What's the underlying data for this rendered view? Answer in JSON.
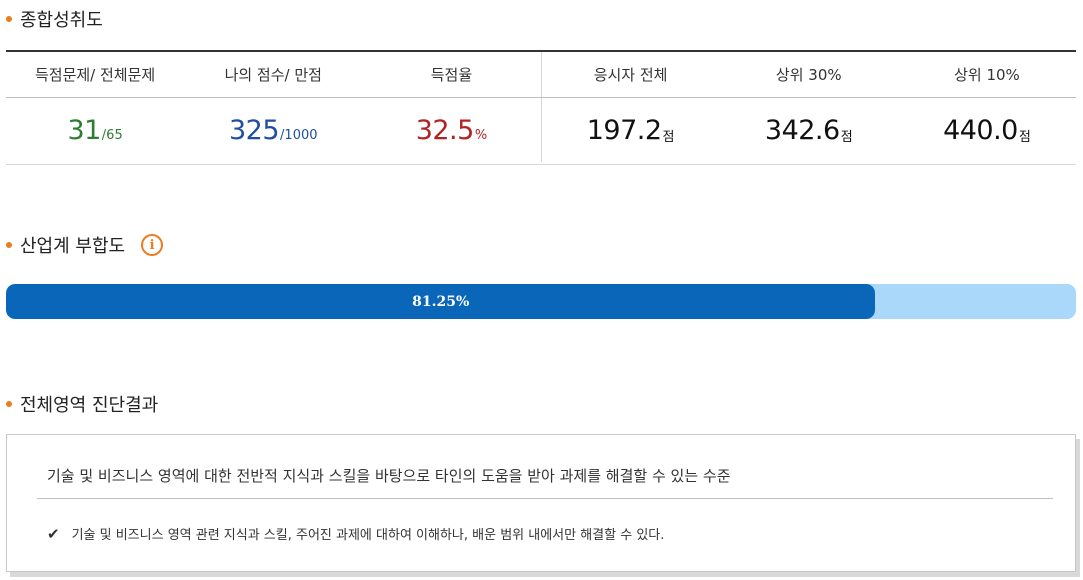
{
  "sections": {
    "overall": {
      "title": "종합성취도"
    },
    "industry_fit": {
      "title": "산업계 부합도",
      "info_icon": "info-icon"
    },
    "diagnosis": {
      "title": "전체영역 진단결과"
    }
  },
  "score_table": {
    "headers": [
      "득점문제/ 전체문제",
      "나의 점수/ 만점",
      "득점율",
      "응시자 전체",
      "상위 30%",
      "상위 10%"
    ],
    "correct": {
      "value": "31",
      "suffix": "/65",
      "color": "#2e7d32"
    },
    "my_score": {
      "value": "325",
      "suffix": "/1000",
      "color": "#1f4fa0"
    },
    "rate": {
      "value": "32.5",
      "suffix": "%",
      "color": "#b22222"
    },
    "all_avg": {
      "value": "197.2",
      "suffix": "점"
    },
    "top30": {
      "value": "342.6",
      "suffix": "점"
    },
    "top10": {
      "value": "440.0",
      "suffix": "점"
    }
  },
  "progress": {
    "label": "81.25%",
    "fraction": 0.8125,
    "fill_color": "#0a66b8",
    "track_color": "#a9d8fb"
  },
  "diagnosis_result": {
    "summary": "기술 및 비즈니스 영역에 대한 전반적 지식과 스킬을 바탕으로 타인의 도움을 받아 과제를 해결할 수 있는 수준",
    "detail_icon": "check-icon",
    "detail": "기술 및 비즈니스 영역 관련 지식과 스킬, 주어진 과제에 대하여 이해하나, 배운 범위 내에서만 해결할 수 있다."
  },
  "accent_color": "#ee7b1e"
}
